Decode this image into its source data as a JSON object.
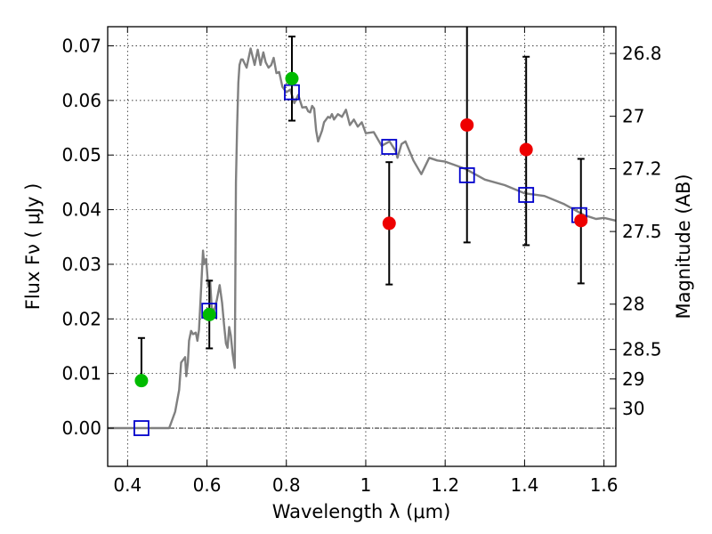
{
  "chart_data": {
    "type": "scatter",
    "title": "",
    "xlabel": "Wavelength  λ (μm)",
    "ylabel": "Flux  Fν ( μJy )",
    "ylabel_right": "Magnitude (AB)",
    "xlim": [
      0.35,
      1.63
    ],
    "ylim": [
      -0.007,
      0.0735
    ],
    "grid": true,
    "legend": "none",
    "x_ticks": [
      {
        "value": 0.4,
        "label": "0.4"
      },
      {
        "value": 0.6,
        "label": "0.6"
      },
      {
        "value": 0.8,
        "label": "0.8"
      },
      {
        "value": 1.0,
        "label": "1"
      },
      {
        "value": 1.2,
        "label": "1.2"
      },
      {
        "value": 1.4,
        "label": "1.4"
      },
      {
        "value": 1.6,
        "label": "1.6"
      }
    ],
    "y_ticks": [
      {
        "value": 0.0,
        "label": "0.00"
      },
      {
        "value": 0.01,
        "label": "0.01"
      },
      {
        "value": 0.02,
        "label": "0.02"
      },
      {
        "value": 0.03,
        "label": "0.03"
      },
      {
        "value": 0.04,
        "label": "0.04"
      },
      {
        "value": 0.05,
        "label": "0.05"
      },
      {
        "value": 0.06,
        "label": "0.06"
      },
      {
        "value": 0.07,
        "label": "0.07"
      }
    ],
    "right_ticks": [
      {
        "label": "26.8",
        "flux": 0.0686
      },
      {
        "label": "27",
        "flux": 0.0571
      },
      {
        "label": "27.2",
        "flux": 0.0475
      },
      {
        "label": "27.5",
        "flux": 0.036
      },
      {
        "label": "28",
        "flux": 0.0227
      },
      {
        "label": "28.5",
        "flux": 0.0144
      },
      {
        "label": "29",
        "flux": 0.009
      },
      {
        "label": "30",
        "flux": 0.0036
      }
    ],
    "series": [
      {
        "name": "model-spectrum",
        "kind": "line",
        "color": "#808080",
        "x": [
          0.35,
          0.5,
          0.505,
          0.52,
          0.53,
          0.535,
          0.54,
          0.545,
          0.548,
          0.552,
          0.555,
          0.56,
          0.565,
          0.572,
          0.576,
          0.58,
          0.585,
          0.59,
          0.593,
          0.598,
          0.603,
          0.608,
          0.612,
          0.618,
          0.625,
          0.632,
          0.638,
          0.643,
          0.648,
          0.652,
          0.656,
          0.66,
          0.665,
          0.67,
          0.673,
          0.676,
          0.679,
          0.682,
          0.686,
          0.69,
          0.7,
          0.71,
          0.72,
          0.728,
          0.735,
          0.742,
          0.748,
          0.755,
          0.762,
          0.768,
          0.775,
          0.782,
          0.79,
          0.8,
          0.81,
          0.82,
          0.83,
          0.84,
          0.85,
          0.855,
          0.86,
          0.865,
          0.87,
          0.875,
          0.88,
          0.885,
          0.89,
          0.895,
          0.9,
          0.905,
          0.91,
          0.915,
          0.92,
          0.93,
          0.94,
          0.95,
          0.96,
          0.97,
          0.98,
          0.99,
          1.0,
          1.02,
          1.04,
          1.06,
          1.075,
          1.08,
          1.09,
          1.1,
          1.12,
          1.14,
          1.16,
          1.18,
          1.2,
          1.25,
          1.3,
          1.35,
          1.4,
          1.45,
          1.5,
          1.55,
          1.58,
          1.6,
          1.63
        ],
        "y": [
          0.0,
          0.0,
          0.0,
          0.003,
          0.007,
          0.012,
          0.0125,
          0.013,
          0.0095,
          0.012,
          0.016,
          0.0178,
          0.0172,
          0.0175,
          0.016,
          0.018,
          0.025,
          0.0325,
          0.03,
          0.031,
          0.026,
          0.027,
          0.022,
          0.0215,
          0.0235,
          0.0262,
          0.023,
          0.019,
          0.0155,
          0.0147,
          0.0185,
          0.017,
          0.0135,
          0.011,
          0.045,
          0.055,
          0.0632,
          0.0665,
          0.0675,
          0.0675,
          0.066,
          0.0695,
          0.0665,
          0.0693,
          0.0665,
          0.0688,
          0.067,
          0.066,
          0.0665,
          0.0678,
          0.065,
          0.0652,
          0.0625,
          0.0615,
          0.062,
          0.0595,
          0.061,
          0.0587,
          0.0588,
          0.058,
          0.0578,
          0.059,
          0.0585,
          0.0545,
          0.0525,
          0.0535,
          0.0545,
          0.056,
          0.0565,
          0.057,
          0.0568,
          0.0575,
          0.0565,
          0.0575,
          0.057,
          0.0583,
          0.0555,
          0.0565,
          0.0552,
          0.056,
          0.054,
          0.0542,
          0.0517,
          0.0525,
          0.0508,
          0.0495,
          0.052,
          0.0525,
          0.049,
          0.0465,
          0.0495,
          0.049,
          0.0488,
          0.0475,
          0.0455,
          0.0445,
          0.043,
          0.0425,
          0.041,
          0.039,
          0.0383,
          0.0385,
          0.038
        ]
      },
      {
        "name": "model-bandpass",
        "kind": "open-square",
        "color": "#0000cc",
        "x": [
          0.435,
          0.606,
          0.814,
          1.059,
          1.255,
          1.404,
          1.538
        ],
        "y": [
          0.0,
          0.0215,
          0.0615,
          0.0515,
          0.0463,
          0.0427,
          0.039
        ]
      },
      {
        "name": "observed-detections",
        "kind": "filled-circle",
        "color": "#00bb00",
        "x": [
          0.435,
          0.606,
          0.814
        ],
        "y": [
          0.0087,
          0.0208,
          0.064
        ],
        "err_low": [
          0.0,
          0.0062,
          0.0077
        ],
        "err_high": [
          0.0078,
          0.0062,
          0.0077
        ]
      },
      {
        "name": "observed-limits",
        "kind": "filled-circle",
        "color": "#ee0000",
        "x": [
          1.059,
          1.255,
          1.404,
          1.542
        ],
        "y": [
          0.0375,
          0.0555,
          0.051,
          0.038
        ],
        "err_low": [
          0.0112,
          0.0215,
          0.0175,
          0.0115
        ],
        "err_high": [
          0.0112,
          0.0195,
          0.017,
          0.0113
        ]
      }
    ]
  }
}
